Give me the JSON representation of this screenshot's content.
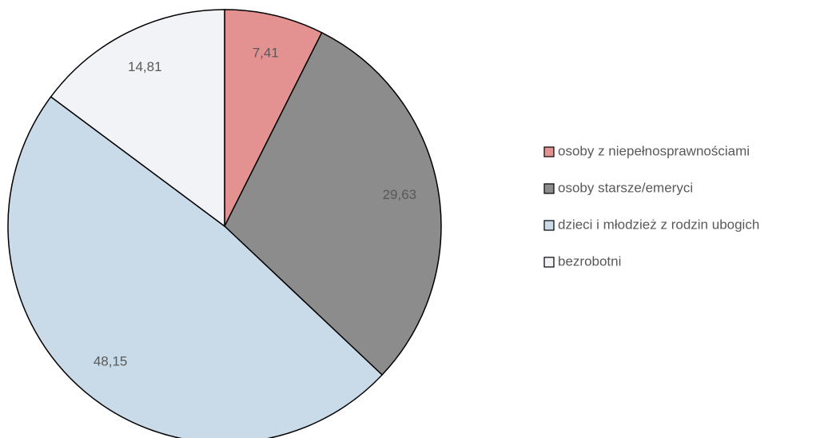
{
  "chart_data": {
    "type": "pie",
    "categories": [
      "osoby z niepełnosprawnościami",
      "osoby starsze/emeryci",
      "dzieci i młodzież z rodzin ubogich",
      "bezrobotni"
    ],
    "values": [
      7.41,
      29.63,
      48.15,
      14.81
    ],
    "value_labels": [
      "7,41",
      "29,63",
      "48,15",
      "14,81"
    ],
    "colors": [
      "#e39191",
      "#8c8c8c",
      "#c9dae8",
      "#f1f3f6"
    ],
    "legend": "right"
  }
}
